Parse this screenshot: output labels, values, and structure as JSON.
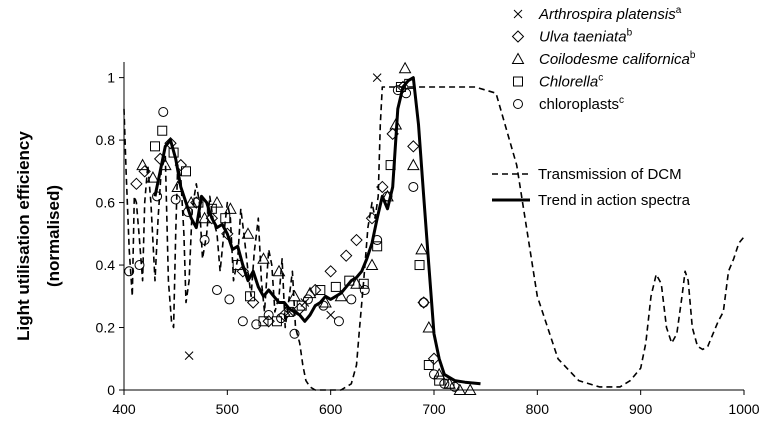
{
  "chart_data": {
    "type": "line",
    "title": "",
    "xlabel": "",
    "ylabel": "Light utilisation efficiency",
    "ylabel_line2": "(normalised)",
    "xlim": [
      400,
      1000
    ],
    "ylim": [
      0,
      1.05
    ],
    "x_ticks": [
      400,
      500,
      600,
      700,
      800,
      900,
      1000
    ],
    "y_ticks": [
      0,
      0.2,
      0.4,
      0.6,
      0.8,
      1
    ],
    "y_tick_labels": [
      "0",
      "0.2",
      "0.4",
      "0.6",
      "0.8",
      "1"
    ],
    "grid": false,
    "legend_placement": "top-right",
    "series": [
      {
        "name": "Arthrospira platensis",
        "name_sup": "a",
        "kind": "scatter",
        "marker": "x",
        "x": [
          463,
          645,
          600,
          560,
          575
        ],
        "y": [
          0.11,
          1.0,
          0.24,
          0.25,
          0.28
        ]
      },
      {
        "name": "Ulva taeniata",
        "name_sup": "b",
        "kind": "scatter",
        "marker": "diamond",
        "x": [
          412,
          420,
          435,
          445,
          455,
          470,
          485,
          500,
          515,
          525,
          540,
          555,
          570,
          585,
          600,
          615,
          625,
          640,
          650,
          660,
          670,
          680,
          690,
          700
        ],
        "y": [
          0.66,
          0.7,
          0.74,
          0.79,
          0.72,
          0.6,
          0.55,
          0.5,
          0.38,
          0.28,
          0.22,
          0.24,
          0.26,
          0.32,
          0.38,
          0.43,
          0.48,
          0.55,
          0.65,
          0.82,
          0.97,
          0.78,
          0.28,
          0.1
        ]
      },
      {
        "name": "Coilodesme californica",
        "name_sup": "b",
        "kind": "scatter",
        "marker": "triangle",
        "x": [
          418,
          428,
          440,
          452,
          465,
          478,
          490,
          503,
          520,
          535,
          550,
          565,
          580,
          595,
          610,
          625,
          640,
          655,
          663,
          672,
          680,
          688,
          695,
          705,
          715,
          725,
          735
        ],
        "y": [
          0.72,
          0.68,
          0.72,
          0.65,
          0.6,
          0.55,
          0.6,
          0.58,
          0.5,
          0.42,
          0.38,
          0.3,
          0.31,
          0.28,
          0.3,
          0.34,
          0.4,
          0.62,
          0.85,
          1.03,
          0.72,
          0.45,
          0.2,
          0.05,
          0.02,
          0.0,
          0.0
        ]
      },
      {
        "name": "Chlorella",
        "name_sup": "c",
        "kind": "scatter",
        "marker": "square",
        "x": [
          430,
          437,
          448,
          460,
          472,
          485,
          498,
          510,
          522,
          535,
          548,
          560,
          572,
          590,
          605,
          618,
          632,
          645,
          658,
          668,
          676,
          686,
          695,
          705,
          715
        ],
        "y": [
          0.78,
          0.83,
          0.76,
          0.7,
          0.6,
          0.58,
          0.55,
          0.4,
          0.3,
          0.22,
          0.22,
          0.25,
          0.27,
          0.32,
          0.33,
          0.35,
          0.34,
          0.46,
          0.72,
          0.97,
          0.98,
          0.4,
          0.08,
          0.03,
          0.02
        ]
      },
      {
        "name": "chloroplasts",
        "name_sup": "c",
        "kind": "scatter",
        "marker": "circle",
        "x": [
          405,
          415,
          432,
          438,
          450,
          462,
          478,
          490,
          502,
          515,
          528,
          540,
          552,
          565,
          578,
          593,
          608,
          620,
          633,
          645,
          655,
          665,
          673,
          680,
          690,
          700,
          710,
          720
        ],
        "y": [
          0.38,
          0.4,
          0.62,
          0.89,
          0.61,
          0.57,
          0.48,
          0.32,
          0.29,
          0.22,
          0.21,
          0.24,
          0.23,
          0.18,
          0.29,
          0.27,
          0.22,
          0.29,
          0.32,
          0.48,
          0.62,
          0.96,
          0.95,
          0.65,
          0.28,
          0.05,
          0.02,
          0.01
        ]
      },
      {
        "name": "Transmission of DCM",
        "kind": "line",
        "style": "dashed",
        "x": [
          400,
          402,
          405,
          408,
          410,
          412,
          415,
          418,
          420,
          423,
          426,
          430,
          433,
          436,
          440,
          443,
          446,
          448,
          450,
          452,
          455,
          458,
          460,
          463,
          466,
          470,
          473,
          476,
          480,
          483,
          486,
          490,
          493,
          496,
          500,
          503,
          506,
          510,
          513,
          516,
          520,
          523,
          526,
          530,
          533,
          536,
          540,
          543,
          546,
          550,
          553,
          556,
          560,
          563,
          566,
          570,
          573,
          576,
          580,
          585,
          590,
          600,
          610,
          620,
          625,
          628,
          632,
          636,
          640,
          643,
          646,
          648,
          650,
          655,
          660,
          680,
          700,
          720,
          740,
          760,
          780,
          800,
          820,
          840,
          860,
          880,
          890,
          900,
          905,
          910,
          915,
          920,
          925,
          930,
          935,
          940,
          943,
          946,
          950,
          955,
          960,
          965,
          970,
          975,
          980,
          985,
          990,
          995,
          1000
        ],
        "y": [
          0.9,
          0.7,
          0.45,
          0.3,
          0.62,
          0.6,
          0.48,
          0.35,
          0.6,
          0.72,
          0.6,
          0.35,
          0.55,
          0.7,
          0.75,
          0.35,
          0.22,
          0.2,
          0.5,
          0.72,
          0.68,
          0.5,
          0.28,
          0.35,
          0.58,
          0.66,
          0.6,
          0.42,
          0.5,
          0.62,
          0.55,
          0.5,
          0.38,
          0.48,
          0.6,
          0.55,
          0.35,
          0.42,
          0.58,
          0.5,
          0.38,
          0.3,
          0.44,
          0.55,
          0.35,
          0.25,
          0.45,
          0.4,
          0.25,
          0.3,
          0.42,
          0.2,
          0.3,
          0.38,
          0.2,
          0.15,
          0.08,
          0.03,
          0.01,
          0.0,
          0.0,
          0.0,
          0.0,
          0.02,
          0.08,
          0.2,
          0.35,
          0.52,
          0.6,
          0.55,
          0.62,
          0.85,
          0.97,
          0.97,
          0.97,
          0.97,
          0.97,
          0.97,
          0.97,
          0.95,
          0.72,
          0.3,
          0.1,
          0.03,
          0.01,
          0.01,
          0.03,
          0.07,
          0.15,
          0.3,
          0.37,
          0.34,
          0.2,
          0.15,
          0.18,
          0.3,
          0.38,
          0.35,
          0.2,
          0.14,
          0.13,
          0.14,
          0.18,
          0.22,
          0.25,
          0.38,
          0.42,
          0.47,
          0.49
        ]
      },
      {
        "name": "Trend in action spectra",
        "kind": "line",
        "style": "solid",
        "x": [
          430,
          435,
          440,
          445,
          450,
          455,
          460,
          465,
          470,
          475,
          480,
          485,
          490,
          495,
          500,
          505,
          510,
          515,
          520,
          525,
          530,
          535,
          540,
          545,
          550,
          555,
          560,
          565,
          570,
          575,
          580,
          585,
          590,
          595,
          600,
          605,
          610,
          615,
          620,
          625,
          630,
          635,
          640,
          645,
          650,
          655,
          660,
          665,
          670,
          675,
          680,
          685,
          690,
          695,
          700,
          705,
          710,
          720,
          730,
          745
        ],
        "y": [
          0.62,
          0.7,
          0.78,
          0.8,
          0.74,
          0.65,
          0.6,
          0.55,
          0.52,
          0.62,
          0.6,
          0.55,
          0.52,
          0.53,
          0.5,
          0.45,
          0.46,
          0.4,
          0.35,
          0.38,
          0.33,
          0.3,
          0.32,
          0.3,
          0.28,
          0.28,
          0.26,
          0.25,
          0.24,
          0.22,
          0.24,
          0.27,
          0.28,
          0.3,
          0.29,
          0.3,
          0.31,
          0.33,
          0.35,
          0.36,
          0.38,
          0.42,
          0.47,
          0.55,
          0.62,
          0.58,
          0.65,
          0.9,
          0.97,
          0.99,
          1.0,
          0.85,
          0.62,
          0.4,
          0.18,
          0.1,
          0.05,
          0.03,
          0.025,
          0.02
        ]
      }
    ]
  }
}
